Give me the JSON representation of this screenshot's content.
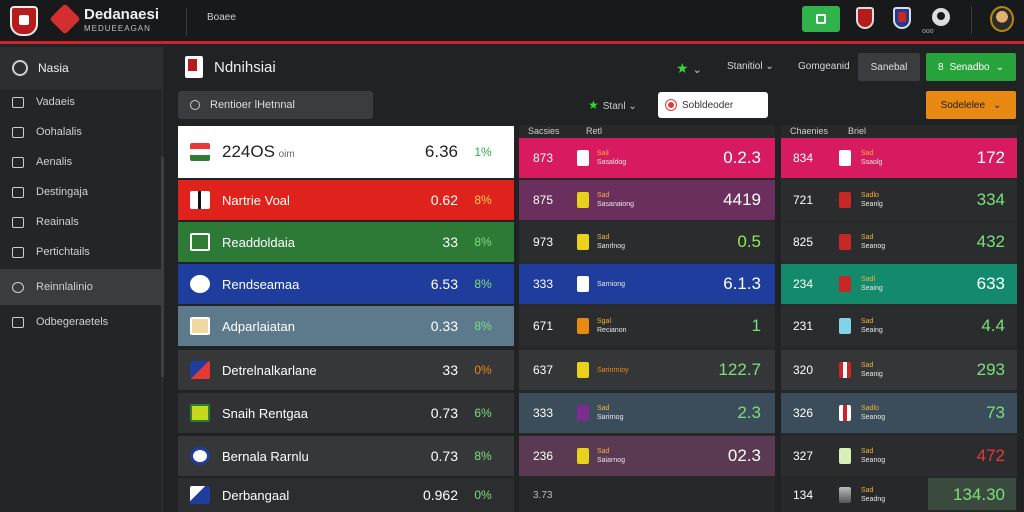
{
  "header": {
    "brand_title": "Dedanaesi",
    "brand_sub": "MEDUEEAGAN",
    "nav_label": "Boaee",
    "user_label": "ooo"
  },
  "sidebar": {
    "title": "Nasia",
    "items": [
      {
        "label": "Vadaeis"
      },
      {
        "label": "Oohalalis"
      },
      {
        "label": "Aenalis"
      },
      {
        "label": "Destingaja"
      },
      {
        "label": "Reainals"
      },
      {
        "label": "Pertichtails"
      },
      {
        "label": "Reinnlalinio"
      },
      {
        "label": "Odbegeraetels"
      }
    ]
  },
  "toolbar": {
    "page_title": "Ndnihsiai",
    "star_filter": "",
    "dd1": "Stanitiol",
    "dd2": "Gomgeanid",
    "btn_dark": "Sanebal",
    "btn_green_num": "8",
    "btn_green_label": "Senadbo"
  },
  "subbar": {
    "search_text": "Rentioer  lHetnnal",
    "star_label": "Stanl",
    "pill_label": "Sobldeoder",
    "btn_orange": "Sodelelee"
  },
  "columns": {
    "mid_a": "Sacsies",
    "mid_b": "Retl",
    "right_a": "Chaenies",
    "right_b": "Briel"
  },
  "left_rows": [
    {
      "name": "224OS",
      "name_suffix": "oim",
      "val": "6.36",
      "pct": "1%"
    },
    {
      "name": "Nartrie Voal",
      "val": "0.62",
      "pct": "8%"
    },
    {
      "name": "Readdoldaia",
      "val": "33",
      "pct": "8%"
    },
    {
      "name": "Rendseamaa",
      "val": "6.53",
      "pct": "8%"
    },
    {
      "name": "Adparlaiatan",
      "val": "0.33",
      "pct": "8%"
    },
    {
      "name": "Detrelnalkarlane",
      "val": "33",
      "pct": "0%"
    },
    {
      "name": "Snaih Rentgaa",
      "val": "0.73",
      "pct": "6%"
    },
    {
      "name": "Bernala Rarnlu",
      "val": "0.73",
      "pct": "8%"
    },
    {
      "name": "Derbangaal",
      "val": "0.962",
      "pct": "0%"
    }
  ],
  "mid_rows": [
    {
      "code": "873",
      "t1": "Sail",
      "t2": "Sasaldog",
      "v": "0.2.3"
    },
    {
      "code": "875",
      "t1": "Sad",
      "t2": "Sasanaiong",
      "v": "4419"
    },
    {
      "code": "973",
      "t1": "Sad",
      "t2": "Sanrlnog",
      "v": "0.5"
    },
    {
      "code": "333",
      "t1": "",
      "t2": "Sarniong",
      "v": "6.1.3"
    },
    {
      "code": "671",
      "t1": "Sgal",
      "t2": "Recianon",
      "v": "1"
    },
    {
      "code": "637",
      "t1": "",
      "t2": "Sarinrnioy",
      "v": "122.7"
    },
    {
      "code": "333",
      "t1": "Sad",
      "t2": "Sarirnog",
      "v": "2.3"
    },
    {
      "code": "236",
      "t1": "Sad",
      "t2": "Saiarnog",
      "v": "02.3"
    },
    {
      "code": "3.73",
      "t1": "",
      "t2": "",
      "v": ""
    }
  ],
  "right_rows": [
    {
      "code": "834",
      "t1": "Sad",
      "t2": "Ssaolg",
      "v": "172"
    },
    {
      "code": "721",
      "t1": "Sadlo",
      "t2": "Seanlg",
      "v": "334"
    },
    {
      "code": "825",
      "t1": "Sad",
      "t2": "Seanog",
      "v": "432"
    },
    {
      "code": "234",
      "t1": "Sadl",
      "t2": "Seaing",
      "v": "633"
    },
    {
      "code": "231",
      "t1": "Sad",
      "t2": "Seaing",
      "v": "4.4"
    },
    {
      "code": "320",
      "t1": "Sad",
      "t2": "Seanig",
      "v": "293"
    },
    {
      "code": "326",
      "t1": "Sadlo",
      "t2": "Seanog",
      "v": "73"
    },
    {
      "code": "327",
      "t1": "Sad",
      "t2": "Seanog",
      "v": "472"
    },
    {
      "code": "134",
      "t1": "Sad",
      "t2": "Seadng",
      "v": "134.30"
    }
  ],
  "colors": {
    "accent_red": "#c8262a",
    "accent_green": "#27a33b",
    "accent_orange": "#e88a12"
  }
}
